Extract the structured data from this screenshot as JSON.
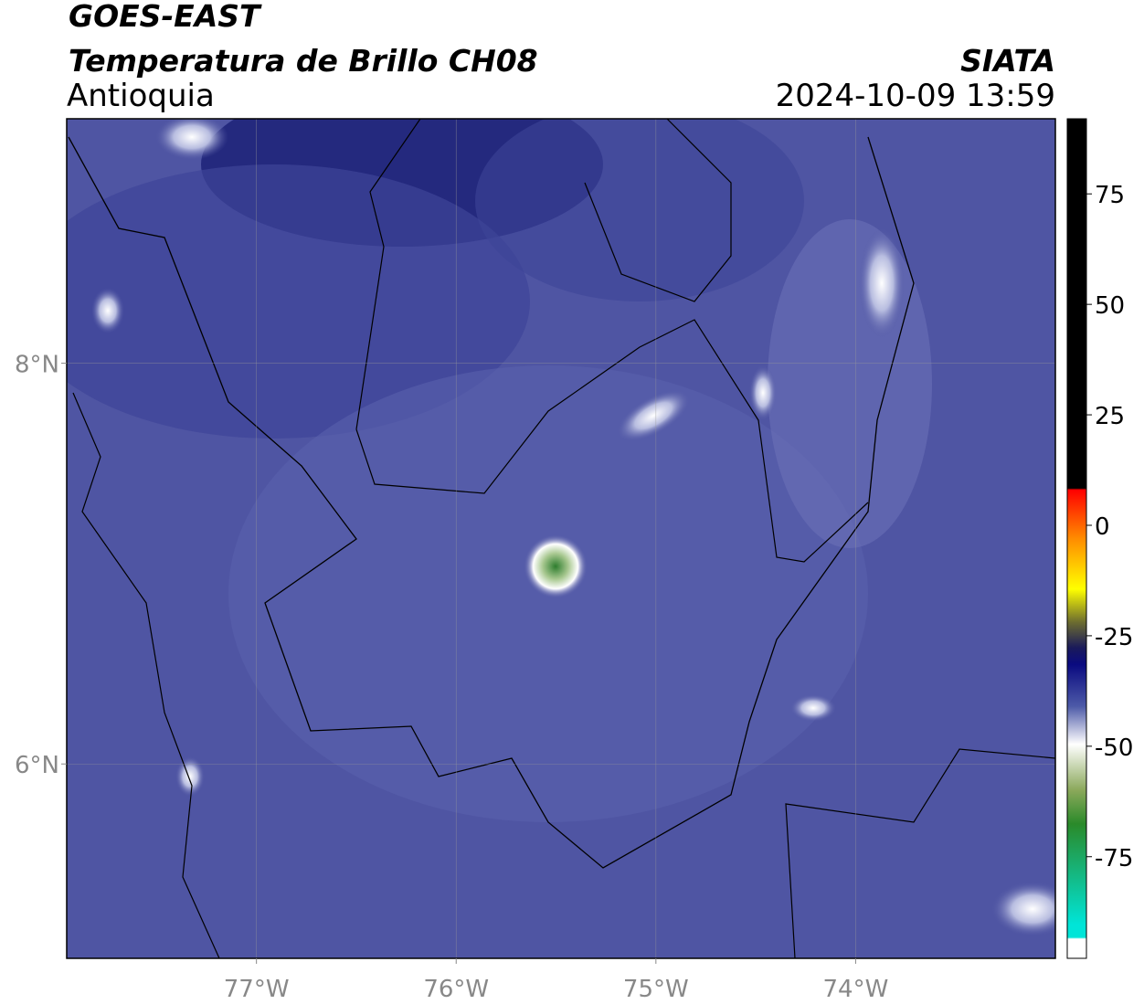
{
  "header": {
    "title": "GOES-EAST",
    "subtitle": "Temperatura de Brillo CH08",
    "region": "Antioquia",
    "source": "SIATA",
    "datetime": "2024-10-09 13:59"
  },
  "map": {
    "xlim": [
      -77.95,
      -73
    ],
    "ylim": [
      5.03,
      9.22
    ],
    "xticks": [
      {
        "value": -77,
        "label": "77°W"
      },
      {
        "value": -76,
        "label": "76°W"
      },
      {
        "value": -75,
        "label": "75°W"
      },
      {
        "value": -74,
        "label": "74°W"
      }
    ],
    "yticks": [
      {
        "value": 6,
        "label": "6°N"
      },
      {
        "value": 8,
        "label": "8°N"
      }
    ],
    "grid": true
  },
  "colorbar": {
    "lim": [
      -98,
      92
    ],
    "ticks": [
      75,
      50,
      25,
      0,
      -25,
      -50,
      -75
    ]
  }
}
